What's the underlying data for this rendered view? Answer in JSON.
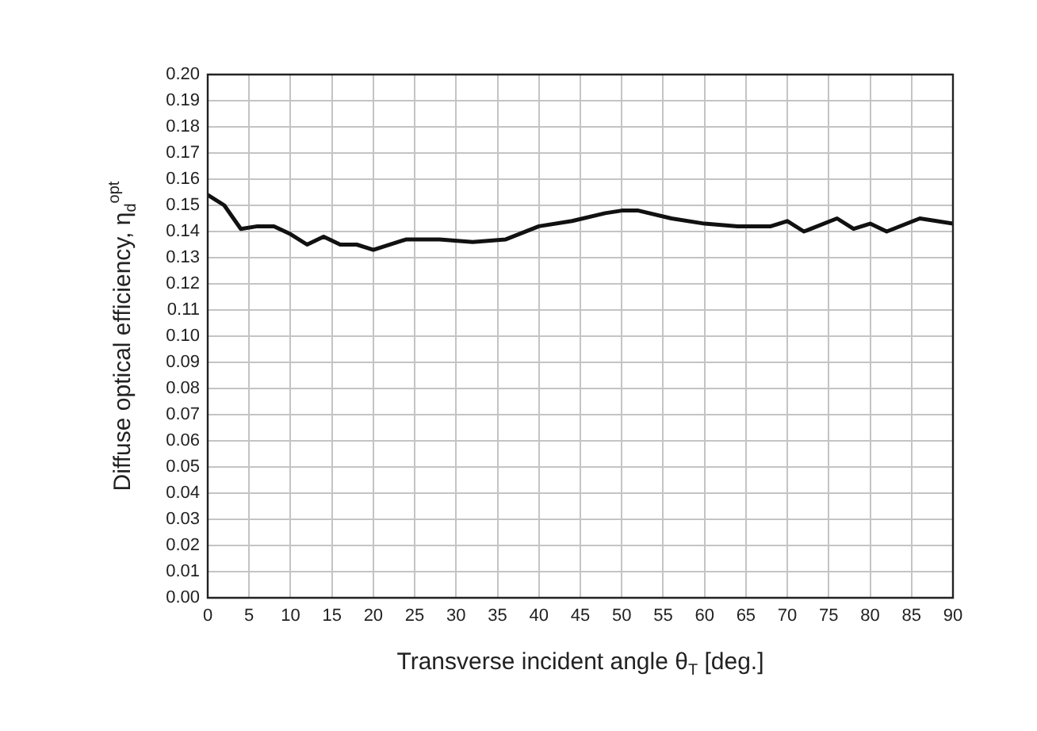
{
  "chart_data": {
    "type": "line",
    "xlabel": "Transverse incident angle θ$_{T}$ [deg.]",
    "ylabel": "Diffuse optical efficiency, η$_{d}$$^{opt}$",
    "x": [
      0,
      2,
      4,
      6,
      8,
      10,
      12,
      14,
      16,
      18,
      20,
      24,
      28,
      32,
      36,
      40,
      44,
      48,
      50,
      52,
      56,
      60,
      64,
      68,
      70,
      72,
      76,
      78,
      80,
      82,
      86,
      90
    ],
    "series": [
      {
        "color": "#111111",
        "values": [
          0.154,
          0.15,
          0.141,
          0.142,
          0.142,
          0.139,
          0.135,
          0.138,
          0.135,
          0.135,
          0.133,
          0.137,
          0.137,
          0.136,
          0.137,
          0.142,
          0.144,
          0.147,
          0.148,
          0.148,
          0.145,
          0.143,
          0.142,
          0.142,
          0.144,
          0.14,
          0.145,
          0.141,
          0.143,
          0.14,
          0.145,
          0.143
        ]
      }
    ],
    "xlim": [
      0,
      90
    ],
    "xticks": [
      0,
      5,
      10,
      15,
      20,
      25,
      30,
      35,
      40,
      45,
      50,
      55,
      60,
      65,
      70,
      75,
      80,
      85,
      90
    ],
    "ylim": [
      0,
      0.2
    ],
    "yticks": [
      {
        "value": 0,
        "label": "0.00"
      },
      {
        "value": 0.01,
        "label": "0.01"
      },
      {
        "value": 0.02,
        "label": "0.02"
      },
      {
        "value": 0.03,
        "label": "0.03"
      },
      {
        "value": 0.04,
        "label": "0.04"
      },
      {
        "value": 0.05,
        "label": "0.05"
      },
      {
        "value": 0.06,
        "label": "0.06"
      },
      {
        "value": 0.07,
        "label": "0.07"
      },
      {
        "value": 0.08,
        "label": "0.08"
      },
      {
        "value": 0.09,
        "label": "0.09"
      },
      {
        "value": 0.1,
        "label": "0.10"
      },
      {
        "value": 0.11,
        "label": "0.11"
      },
      {
        "value": 0.12,
        "label": "0.12"
      },
      {
        "value": 0.13,
        "label": "0.13"
      },
      {
        "value": 0.14,
        "label": "0.14"
      },
      {
        "value": 0.15,
        "label": "0.15"
      },
      {
        "value": 0.16,
        "label": "0.16"
      },
      {
        "value": 0.17,
        "label": "0.17"
      },
      {
        "value": 0.18,
        "label": "0.18"
      },
      {
        "value": 0.19,
        "label": "0.19"
      },
      {
        "value": 0.2,
        "label": "0.20"
      }
    ],
    "grid": true,
    "marker": "none",
    "line_style": "solid",
    "legend": false
  }
}
